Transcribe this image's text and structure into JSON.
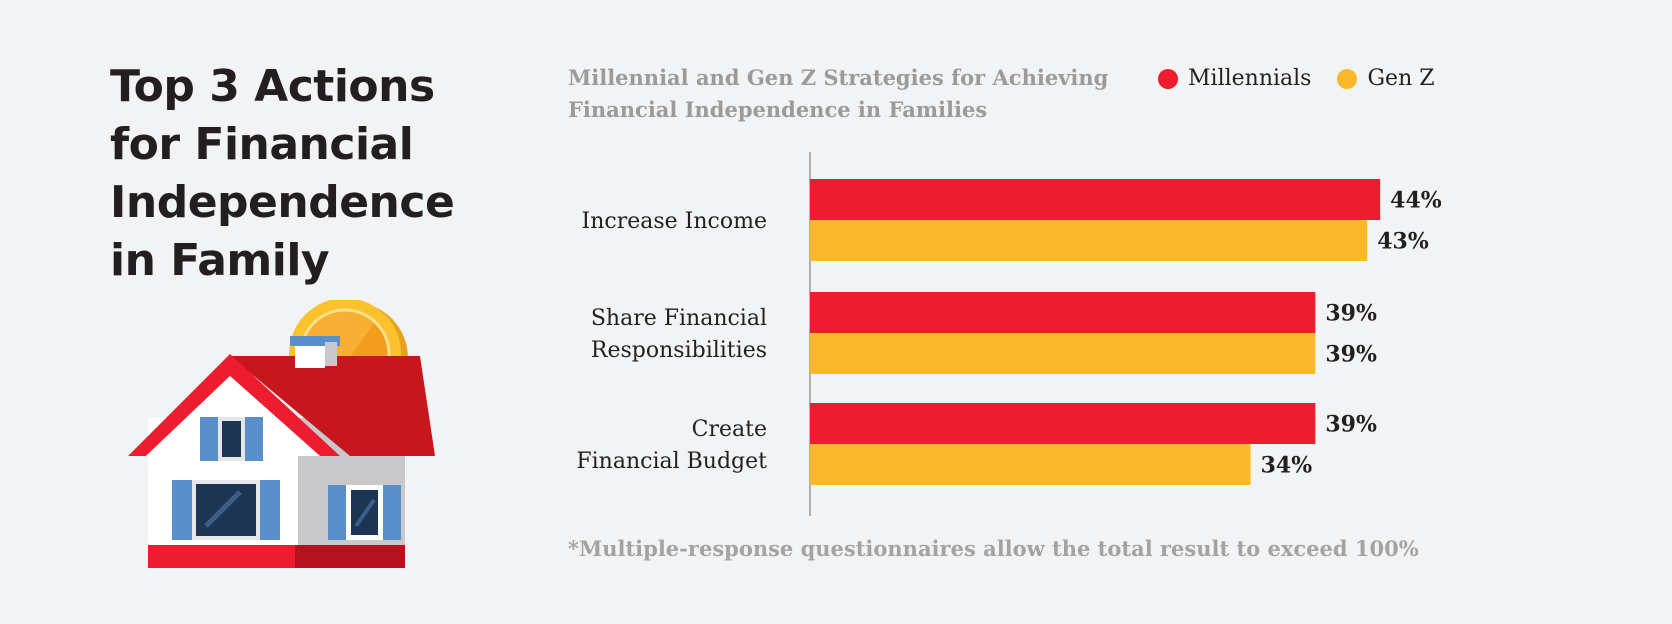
{
  "page": {
    "title_lines": [
      "Top 3 Actions",
      "for Financial",
      "Independence",
      "in Family"
    ],
    "footnote": "*Multiple-response questionnaires allow the total result to exceed 100%"
  },
  "colors": {
    "millennials": "#ed1c2e",
    "genz": "#fbb829",
    "text": "#231f20",
    "muted": "#9b9b9b",
    "background": "#f2f3f5"
  },
  "illustration": {
    "icons": [
      "house-icon",
      "coin-icon"
    ]
  },
  "chart_data": {
    "type": "bar",
    "orientation": "horizontal",
    "title_lines": [
      "Millennial and Gen Z Strategies for Achieving",
      "Financial Independence in Families"
    ],
    "categories": [
      [
        "Increase Income"
      ],
      [
        "Share Financial",
        "Responsibilities"
      ],
      [
        "Create",
        "Financial Budget"
      ]
    ],
    "series": [
      {
        "name": "Millennials",
        "color": "#ed1c2e",
        "values": [
          44,
          39,
          39
        ]
      },
      {
        "name": "Gen Z",
        "color": "#fbb829",
        "values": [
          43,
          39,
          34
        ]
      }
    ],
    "value_suffix": "%",
    "xlim": [
      0,
      48
    ],
    "grid": false,
    "legend": "top-right",
    "xlabel": "",
    "ylabel": ""
  }
}
